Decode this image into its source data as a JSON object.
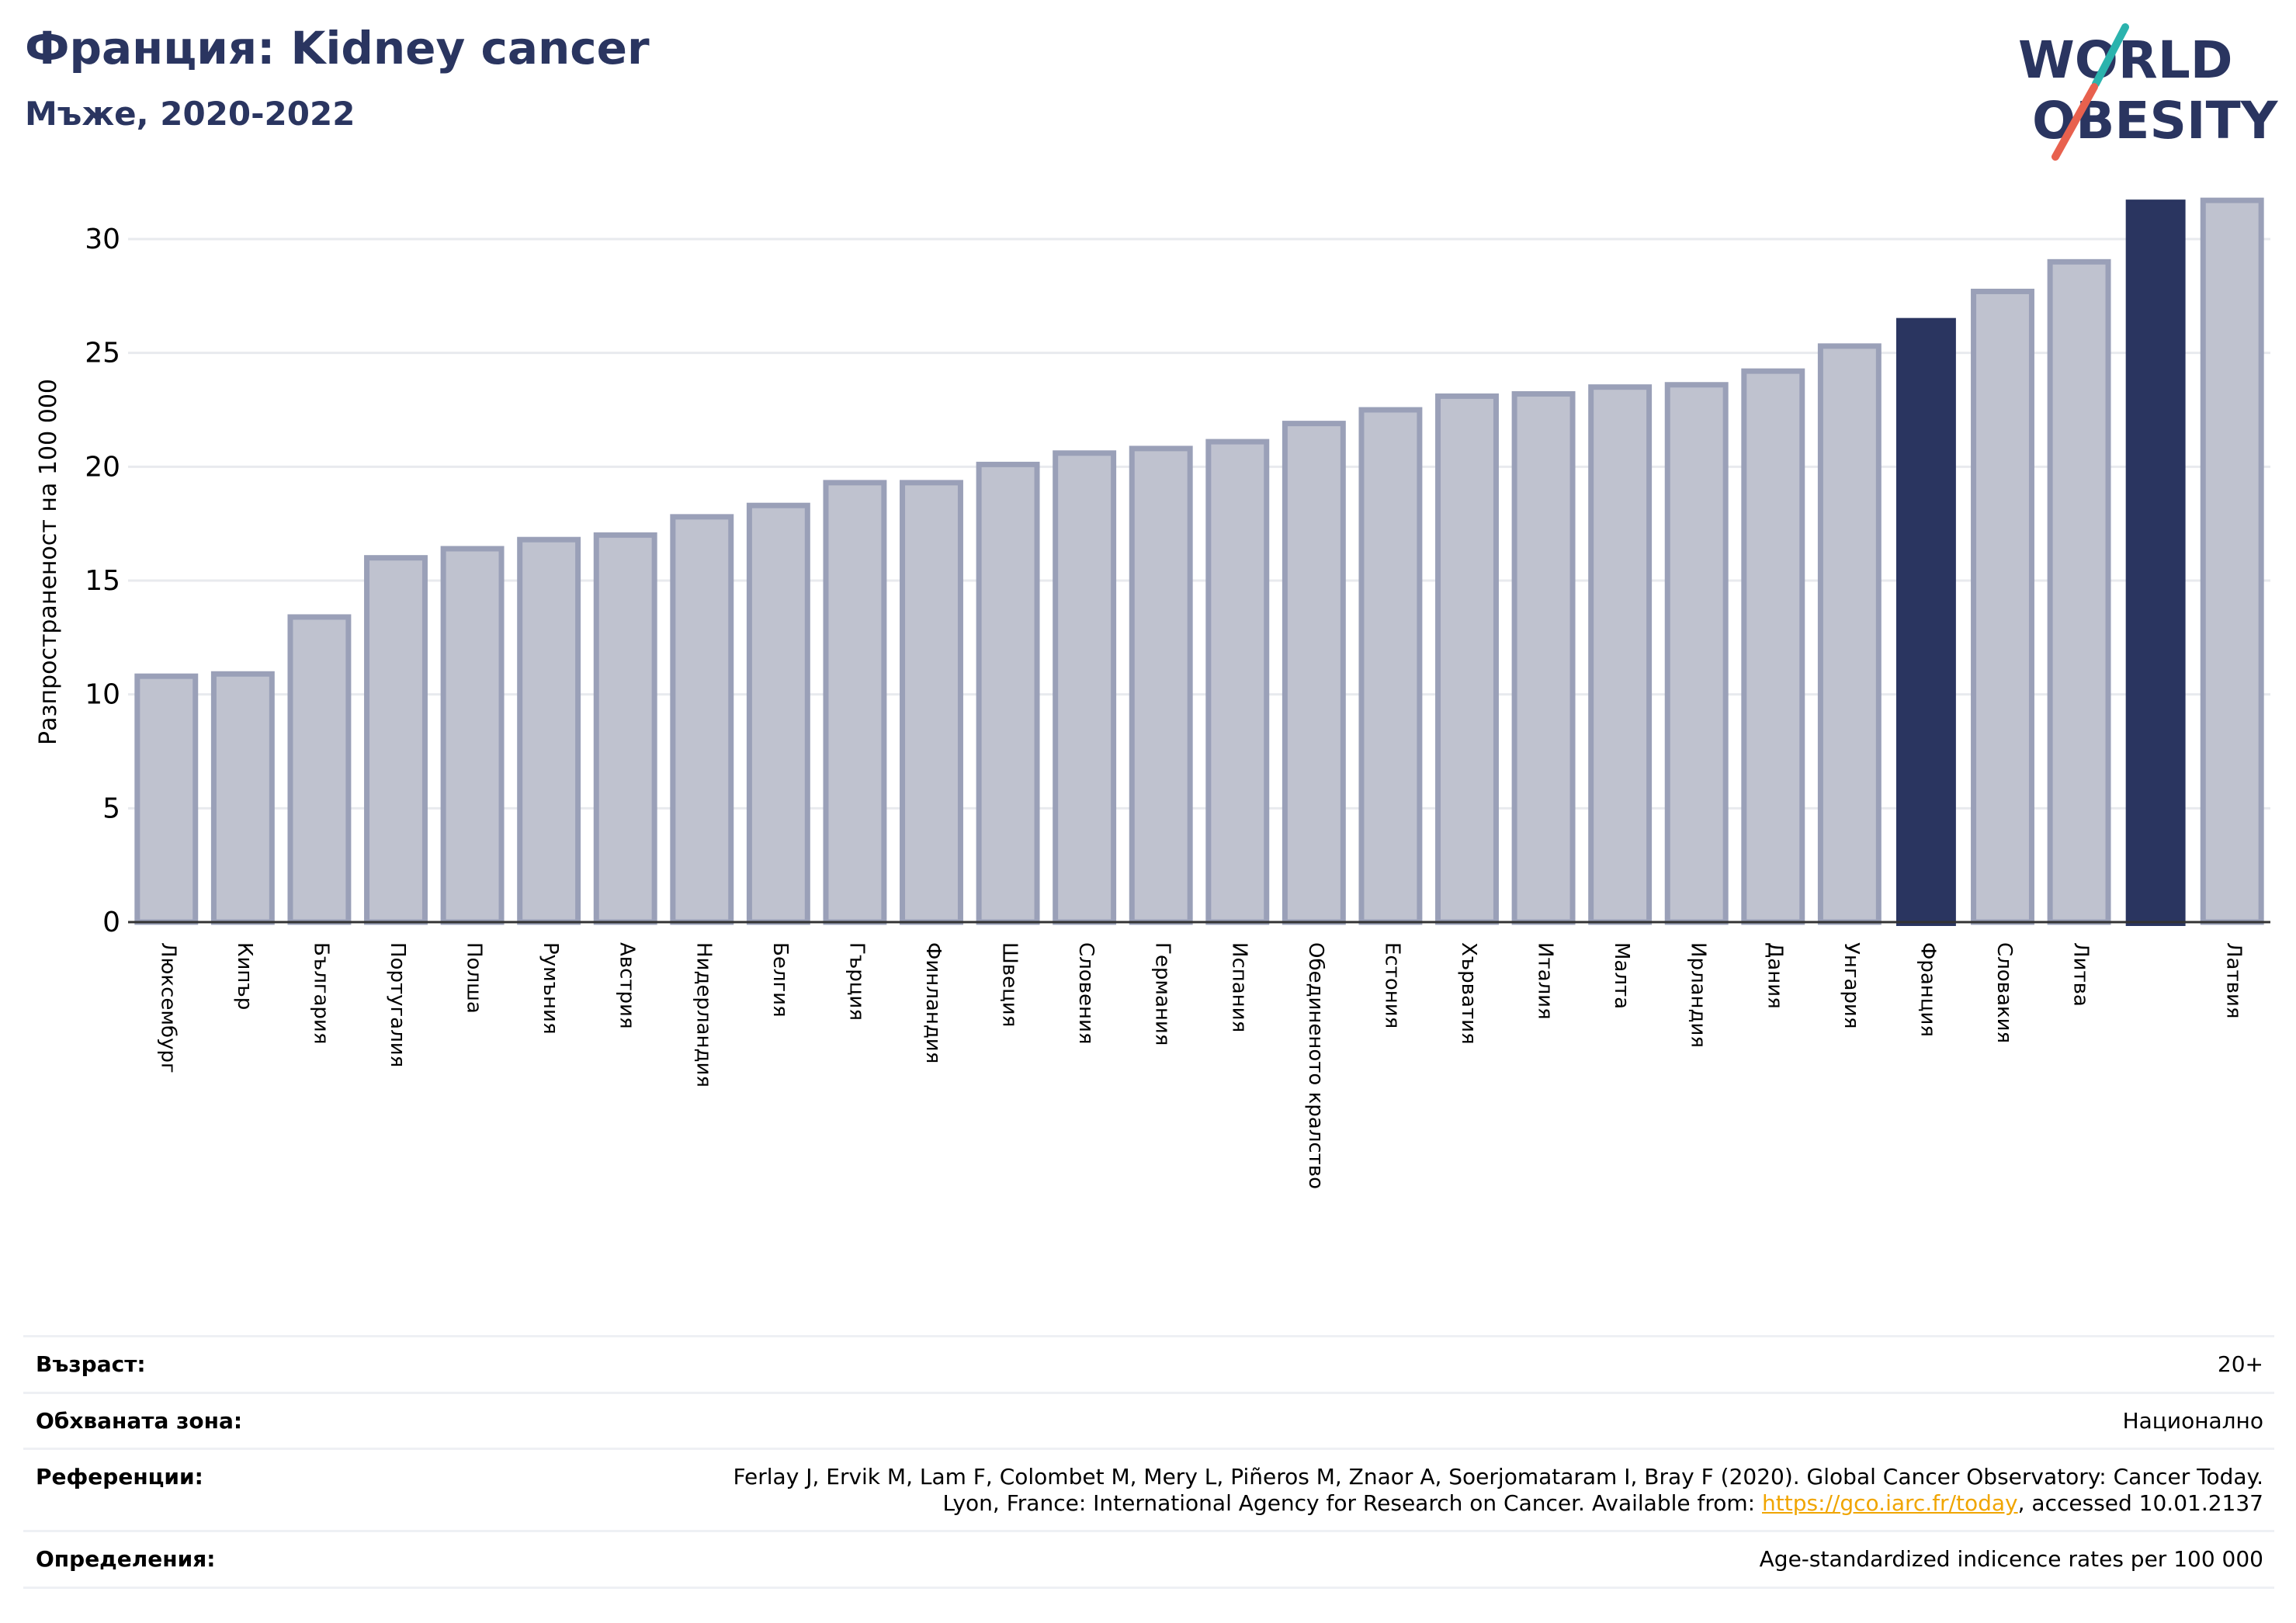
{
  "header": {
    "title": "Франция: Kidney cancer",
    "subtitle": "Мъже, 2020-2022"
  },
  "logo": {
    "line1": "WORLD",
    "line2": "OBESITY",
    "colors": {
      "text": "#2a3560",
      "slash_top": "#2bb3ad",
      "slash_bottom": "#e8614e"
    }
  },
  "chart_data": {
    "type": "bar",
    "ylabel": "Разпространеност  на 100 000",
    "ylim": [
      0,
      32
    ],
    "yticks": [
      0,
      5,
      10,
      15,
      20,
      25,
      30
    ],
    "grid": true,
    "categories": [
      "Люксембург",
      "Кипър",
      "България",
      "Португалия",
      "Полша",
      "Румъния",
      "Австрия",
      "Нидерландия",
      "Белгия",
      "Гърция",
      "Финландия",
      "Швеция",
      "Словения",
      "Германия",
      "Испания",
      "Обединеното кралство",
      "Естония",
      "Хърватия",
      "Италия",
      "Малта",
      "Ирландия",
      "Дания",
      "Унгария",
      "Франция",
      "Словакия",
      "Литва",
      "",
      "Латвия"
    ],
    "values": [
      10.8,
      10.9,
      13.4,
      16.0,
      16.4,
      16.8,
      17.0,
      17.8,
      18.3,
      19.3,
      19.3,
      20.1,
      20.6,
      20.8,
      21.1,
      21.9,
      22.5,
      23.1,
      23.2,
      23.5,
      23.6,
      24.2,
      25.3,
      26.5,
      27.7,
      29.0,
      31.7,
      31.7
    ],
    "highlight_indices": [
      23,
      26
    ],
    "colors": {
      "bar": "#bfc2cf",
      "bar_edge": "#9aa0b8",
      "highlight": "#2a3560",
      "grid": "#e8eaee",
      "axis": "#333333"
    }
  },
  "info_table": {
    "rows": [
      {
        "label": "Възраст:",
        "value": "20+"
      },
      {
        "label": "Обхваната зона:",
        "value": "Национално"
      },
      {
        "label": "Референции:",
        "value_line1": "Ferlay J, Ervik M, Lam F, Colombet M, Mery L, Piñeros M, Znaor A, Soerjomataram I, Bray F (2020). Global Cancer Observatory: Cancer Today.",
        "value_line2_pre": "Lyon, France: International Agency for Research on Cancer. Available from: ",
        "link": "https://gco.iarc.fr/today",
        "value_line2_post": ", accessed 10.01.2137"
      },
      {
        "label": "Определения:",
        "value": "Age-standardized indicence rates per 100 000"
      }
    ]
  }
}
